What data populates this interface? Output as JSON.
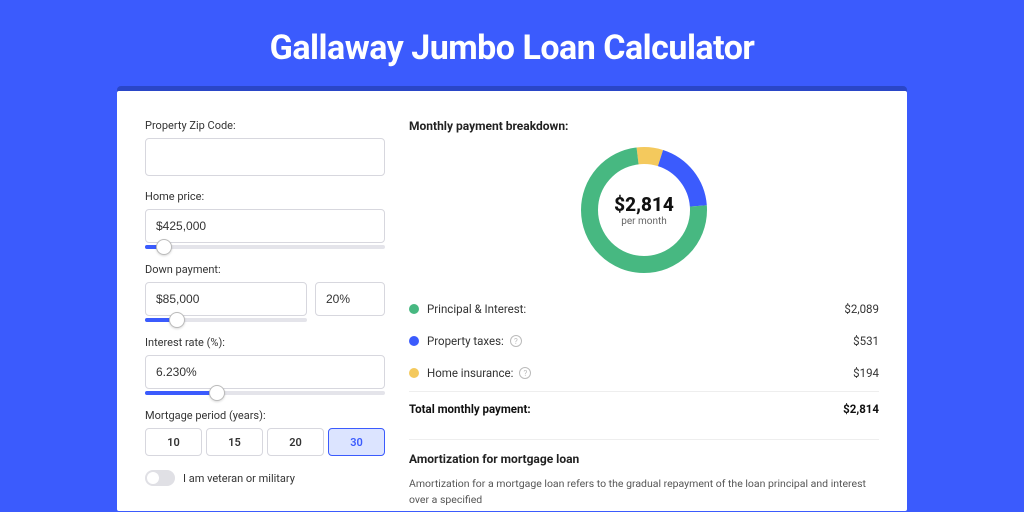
{
  "colors": {
    "page_bg": "#3b5bfd",
    "band_bg": "#2a46c7",
    "card_bg": "#ffffff",
    "input_border": "#d7d7de",
    "slider_track": "#e4e4ea",
    "slider_fill": "#3b5bfd",
    "text_primary": "#333333",
    "text_dark": "#111111",
    "divider": "#eeeeee"
  },
  "title": "Gallaway Jumbo Loan Calculator",
  "form": {
    "zip": {
      "label": "Property Zip Code:",
      "value": ""
    },
    "home_price": {
      "label": "Home price:",
      "value": "$425,000",
      "slider_pct": 8
    },
    "down_payment": {
      "label": "Down payment:",
      "amount": "$85,000",
      "percent": "20%",
      "slider_pct": 20
    },
    "interest": {
      "label": "Interest rate (%):",
      "value": "6.230%",
      "slider_pct": 30
    },
    "period": {
      "label": "Mortgage period (years):",
      "options": [
        "10",
        "15",
        "20",
        "30"
      ],
      "selected": "30"
    },
    "veteran": {
      "label": "I am veteran or military",
      "checked": false
    }
  },
  "breakdown": {
    "title": "Monthly payment breakdown:",
    "center_amount": "$2,814",
    "center_sub": "per month",
    "donut": {
      "size": 126,
      "thickness": 17,
      "track_color": "#eeeeee",
      "segments": [
        {
          "label": "Principal & Interest:",
          "color": "#47b881",
          "value": 2089,
          "display": "$2,089",
          "has_info": false
        },
        {
          "label": "Property taxes:",
          "color": "#3b5bfd",
          "value": 531,
          "display": "$531",
          "has_info": true
        },
        {
          "label": "Home insurance:",
          "color": "#f4c95d",
          "value": 194,
          "display": "$194",
          "has_info": true
        }
      ]
    },
    "total": {
      "label": "Total monthly payment:",
      "display": "$2,814"
    }
  },
  "amortization": {
    "title": "Amortization for mortgage loan",
    "text": "Amortization for a mortgage loan refers to the gradual repayment of the loan principal and interest over a specified"
  }
}
